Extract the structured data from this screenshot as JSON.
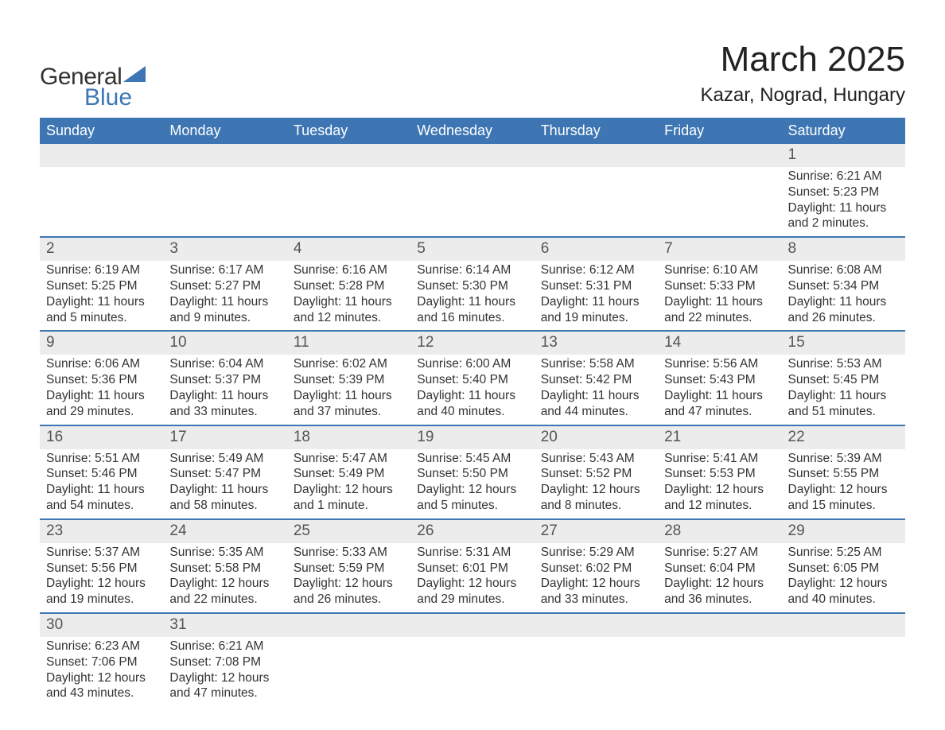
{
  "logo": {
    "text_general": "General",
    "text_blue": "Blue",
    "shape_color": "#3d76b3"
  },
  "header": {
    "month_title": "March 2025",
    "location": "Kazar, Nograd, Hungary"
  },
  "calendar": {
    "header_bg": "#3d76b3",
    "header_fg": "#ffffff",
    "daynum_bg": "#ececec",
    "row_divider": "#3d76b3",
    "day_names": [
      "Sunday",
      "Monday",
      "Tuesday",
      "Wednesday",
      "Thursday",
      "Friday",
      "Saturday"
    ],
    "weeks": [
      [
        {
          "n": "",
          "sunrise": "",
          "sunset": "",
          "daylight": ""
        },
        {
          "n": "",
          "sunrise": "",
          "sunset": "",
          "daylight": ""
        },
        {
          "n": "",
          "sunrise": "",
          "sunset": "",
          "daylight": ""
        },
        {
          "n": "",
          "sunrise": "",
          "sunset": "",
          "daylight": ""
        },
        {
          "n": "",
          "sunrise": "",
          "sunset": "",
          "daylight": ""
        },
        {
          "n": "",
          "sunrise": "",
          "sunset": "",
          "daylight": ""
        },
        {
          "n": "1",
          "sunrise": "Sunrise: 6:21 AM",
          "sunset": "Sunset: 5:23 PM",
          "daylight": "Daylight: 11 hours and 2 minutes."
        }
      ],
      [
        {
          "n": "2",
          "sunrise": "Sunrise: 6:19 AM",
          "sunset": "Sunset: 5:25 PM",
          "daylight": "Daylight: 11 hours and 5 minutes."
        },
        {
          "n": "3",
          "sunrise": "Sunrise: 6:17 AM",
          "sunset": "Sunset: 5:27 PM",
          "daylight": "Daylight: 11 hours and 9 minutes."
        },
        {
          "n": "4",
          "sunrise": "Sunrise: 6:16 AM",
          "sunset": "Sunset: 5:28 PM",
          "daylight": "Daylight: 11 hours and 12 minutes."
        },
        {
          "n": "5",
          "sunrise": "Sunrise: 6:14 AM",
          "sunset": "Sunset: 5:30 PM",
          "daylight": "Daylight: 11 hours and 16 minutes."
        },
        {
          "n": "6",
          "sunrise": "Sunrise: 6:12 AM",
          "sunset": "Sunset: 5:31 PM",
          "daylight": "Daylight: 11 hours and 19 minutes."
        },
        {
          "n": "7",
          "sunrise": "Sunrise: 6:10 AM",
          "sunset": "Sunset: 5:33 PM",
          "daylight": "Daylight: 11 hours and 22 minutes."
        },
        {
          "n": "8",
          "sunrise": "Sunrise: 6:08 AM",
          "sunset": "Sunset: 5:34 PM",
          "daylight": "Daylight: 11 hours and 26 minutes."
        }
      ],
      [
        {
          "n": "9",
          "sunrise": "Sunrise: 6:06 AM",
          "sunset": "Sunset: 5:36 PM",
          "daylight": "Daylight: 11 hours and 29 minutes."
        },
        {
          "n": "10",
          "sunrise": "Sunrise: 6:04 AM",
          "sunset": "Sunset: 5:37 PM",
          "daylight": "Daylight: 11 hours and 33 minutes."
        },
        {
          "n": "11",
          "sunrise": "Sunrise: 6:02 AM",
          "sunset": "Sunset: 5:39 PM",
          "daylight": "Daylight: 11 hours and 37 minutes."
        },
        {
          "n": "12",
          "sunrise": "Sunrise: 6:00 AM",
          "sunset": "Sunset: 5:40 PM",
          "daylight": "Daylight: 11 hours and 40 minutes."
        },
        {
          "n": "13",
          "sunrise": "Sunrise: 5:58 AM",
          "sunset": "Sunset: 5:42 PM",
          "daylight": "Daylight: 11 hours and 44 minutes."
        },
        {
          "n": "14",
          "sunrise": "Sunrise: 5:56 AM",
          "sunset": "Sunset: 5:43 PM",
          "daylight": "Daylight: 11 hours and 47 minutes."
        },
        {
          "n": "15",
          "sunrise": "Sunrise: 5:53 AM",
          "sunset": "Sunset: 5:45 PM",
          "daylight": "Daylight: 11 hours and 51 minutes."
        }
      ],
      [
        {
          "n": "16",
          "sunrise": "Sunrise: 5:51 AM",
          "sunset": "Sunset: 5:46 PM",
          "daylight": "Daylight: 11 hours and 54 minutes."
        },
        {
          "n": "17",
          "sunrise": "Sunrise: 5:49 AM",
          "sunset": "Sunset: 5:47 PM",
          "daylight": "Daylight: 11 hours and 58 minutes."
        },
        {
          "n": "18",
          "sunrise": "Sunrise: 5:47 AM",
          "sunset": "Sunset: 5:49 PM",
          "daylight": "Daylight: 12 hours and 1 minute."
        },
        {
          "n": "19",
          "sunrise": "Sunrise: 5:45 AM",
          "sunset": "Sunset: 5:50 PM",
          "daylight": "Daylight: 12 hours and 5 minutes."
        },
        {
          "n": "20",
          "sunrise": "Sunrise: 5:43 AM",
          "sunset": "Sunset: 5:52 PM",
          "daylight": "Daylight: 12 hours and 8 minutes."
        },
        {
          "n": "21",
          "sunrise": "Sunrise: 5:41 AM",
          "sunset": "Sunset: 5:53 PM",
          "daylight": "Daylight: 12 hours and 12 minutes."
        },
        {
          "n": "22",
          "sunrise": "Sunrise: 5:39 AM",
          "sunset": "Sunset: 5:55 PM",
          "daylight": "Daylight: 12 hours and 15 minutes."
        }
      ],
      [
        {
          "n": "23",
          "sunrise": "Sunrise: 5:37 AM",
          "sunset": "Sunset: 5:56 PM",
          "daylight": "Daylight: 12 hours and 19 minutes."
        },
        {
          "n": "24",
          "sunrise": "Sunrise: 5:35 AM",
          "sunset": "Sunset: 5:58 PM",
          "daylight": "Daylight: 12 hours and 22 minutes."
        },
        {
          "n": "25",
          "sunrise": "Sunrise: 5:33 AM",
          "sunset": "Sunset: 5:59 PM",
          "daylight": "Daylight: 12 hours and 26 minutes."
        },
        {
          "n": "26",
          "sunrise": "Sunrise: 5:31 AM",
          "sunset": "Sunset: 6:01 PM",
          "daylight": "Daylight: 12 hours and 29 minutes."
        },
        {
          "n": "27",
          "sunrise": "Sunrise: 5:29 AM",
          "sunset": "Sunset: 6:02 PM",
          "daylight": "Daylight: 12 hours and 33 minutes."
        },
        {
          "n": "28",
          "sunrise": "Sunrise: 5:27 AM",
          "sunset": "Sunset: 6:04 PM",
          "daylight": "Daylight: 12 hours and 36 minutes."
        },
        {
          "n": "29",
          "sunrise": "Sunrise: 5:25 AM",
          "sunset": "Sunset: 6:05 PM",
          "daylight": "Daylight: 12 hours and 40 minutes."
        }
      ],
      [
        {
          "n": "30",
          "sunrise": "Sunrise: 6:23 AM",
          "sunset": "Sunset: 7:06 PM",
          "daylight": "Daylight: 12 hours and 43 minutes."
        },
        {
          "n": "31",
          "sunrise": "Sunrise: 6:21 AM",
          "sunset": "Sunset: 7:08 PM",
          "daylight": "Daylight: 12 hours and 47 minutes."
        },
        {
          "n": "",
          "sunrise": "",
          "sunset": "",
          "daylight": ""
        },
        {
          "n": "",
          "sunrise": "",
          "sunset": "",
          "daylight": ""
        },
        {
          "n": "",
          "sunrise": "",
          "sunset": "",
          "daylight": ""
        },
        {
          "n": "",
          "sunrise": "",
          "sunset": "",
          "daylight": ""
        },
        {
          "n": "",
          "sunrise": "",
          "sunset": "",
          "daylight": ""
        }
      ]
    ]
  }
}
